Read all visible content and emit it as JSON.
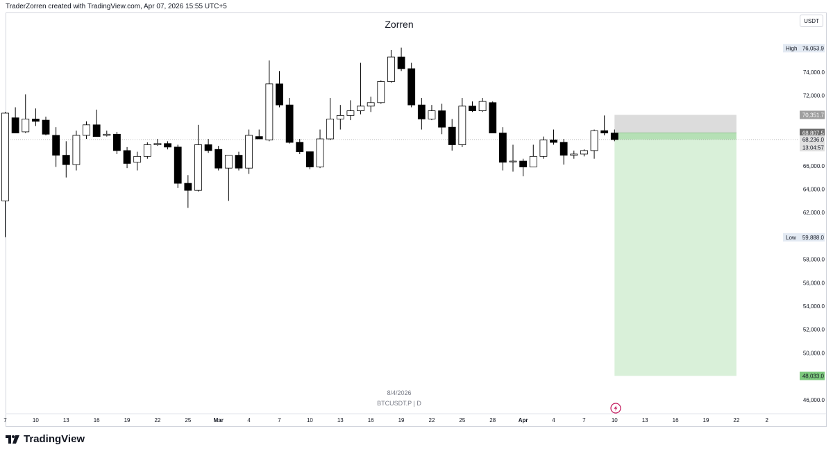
{
  "header": {
    "attribution": "TraderZorren created with TradingView.com, Apr 07, 2026 15:55 UTC+5"
  },
  "chart_title": "Zorren",
  "currency_button": "USDT",
  "watermark": {
    "date": "8/4/2026",
    "symbol": "BTCUSDT.P | D"
  },
  "footer": {
    "brand": "TradingView"
  },
  "colors": {
    "up_body": "#ffffff",
    "down_body": "#000000",
    "wick": "#000000",
    "target_zone": "#d9f0d9",
    "stop_zone": "#dcdcdc",
    "entry_zone": "#b5e0b5",
    "price_label_dark": "#6b6b6b",
    "target_label": "#7dc87d",
    "high_low_label": "#e3eaf3"
  },
  "chart_data": {
    "type": "candlestick",
    "symbol": "BTCUSDT.P",
    "interval": "D",
    "ylim": [
      45000,
      77500
    ],
    "y_ticks": [
      "74,000.0",
      "72,000.0",
      "66,000.0",
      "64,000.0",
      "62,000.0",
      "58,000.0",
      "56,000.0",
      "54,000.0",
      "52,000.0",
      "50,000.0",
      "46,000.0"
    ],
    "y_tick_values": [
      74000,
      72000,
      66000,
      64000,
      62000,
      58000,
      56000,
      54000,
      52000,
      50000,
      46000
    ],
    "x_labels": [
      "7",
      "10",
      "13",
      "16",
      "19",
      "22",
      "25",
      "Mar",
      "4",
      "7",
      "10",
      "13",
      "16",
      "19",
      "22",
      "25",
      "28",
      "Apr",
      "4",
      "7",
      "10",
      "13",
      "16",
      "19",
      "22",
      "2"
    ],
    "x_label_bar_index": [
      0,
      3,
      6,
      9,
      12,
      15,
      18,
      21,
      24,
      27,
      30,
      33,
      36,
      39,
      42,
      45,
      48,
      51,
      54,
      57,
      60,
      63,
      66,
      69,
      72,
      75
    ],
    "candles": [
      {
        "o": 63000,
        "h": 70600,
        "l": 59900,
        "c": 70500
      },
      {
        "o": 70100,
        "h": 71000,
        "l": 68800,
        "c": 68800
      },
      {
        "o": 68900,
        "h": 72100,
        "l": 68800,
        "c": 70000
      },
      {
        "o": 70000,
        "h": 70900,
        "l": 69400,
        "c": 69800
      },
      {
        "o": 69900,
        "h": 70200,
        "l": 68600,
        "c": 68700
      },
      {
        "o": 68600,
        "h": 69300,
        "l": 65900,
        "c": 66900
      },
      {
        "o": 66900,
        "h": 68100,
        "l": 65000,
        "c": 66100
      },
      {
        "o": 66100,
        "h": 69000,
        "l": 65600,
        "c": 68600
      },
      {
        "o": 68600,
        "h": 69800,
        "l": 68300,
        "c": 69500
      },
      {
        "o": 69500,
        "h": 70800,
        "l": 68500,
        "c": 68500
      },
      {
        "o": 68600,
        "h": 69000,
        "l": 68500,
        "c": 68700
      },
      {
        "o": 68700,
        "h": 68900,
        "l": 67000,
        "c": 67300
      },
      {
        "o": 67300,
        "h": 67600,
        "l": 65800,
        "c": 66200
      },
      {
        "o": 66300,
        "h": 67200,
        "l": 65600,
        "c": 66800
      },
      {
        "o": 66800,
        "h": 68000,
        "l": 66600,
        "c": 67800
      },
      {
        "o": 67800,
        "h": 68300,
        "l": 67700,
        "c": 67900
      },
      {
        "o": 67900,
        "h": 68100,
        "l": 67400,
        "c": 67600
      },
      {
        "o": 67600,
        "h": 67800,
        "l": 64100,
        "c": 64500
      },
      {
        "o": 64500,
        "h": 65200,
        "l": 62400,
        "c": 63900
      },
      {
        "o": 63900,
        "h": 69500,
        "l": 63800,
        "c": 67800
      },
      {
        "o": 67800,
        "h": 68300,
        "l": 67100,
        "c": 67300
      },
      {
        "o": 67400,
        "h": 67700,
        "l": 65600,
        "c": 65800
      },
      {
        "o": 65800,
        "h": 66800,
        "l": 63000,
        "c": 66900
      },
      {
        "o": 66900,
        "h": 67200,
        "l": 65600,
        "c": 65800
      },
      {
        "o": 65800,
        "h": 69100,
        "l": 65300,
        "c": 68600
      },
      {
        "o": 68500,
        "h": 69100,
        "l": 68300,
        "c": 68300
      },
      {
        "o": 68200,
        "h": 75000,
        "l": 68100,
        "c": 73000
      },
      {
        "o": 73000,
        "h": 74100,
        "l": 71000,
        "c": 71200
      },
      {
        "o": 71200,
        "h": 71800,
        "l": 67900,
        "c": 68000
      },
      {
        "o": 68000,
        "h": 68300,
        "l": 67000,
        "c": 67200
      },
      {
        "o": 67200,
        "h": 67200,
        "l": 65700,
        "c": 65900
      },
      {
        "o": 65900,
        "h": 69100,
        "l": 65800,
        "c": 68300
      },
      {
        "o": 68300,
        "h": 71800,
        "l": 68200,
        "c": 70000
      },
      {
        "o": 70000,
        "h": 71200,
        "l": 69100,
        "c": 70300
      },
      {
        "o": 70300,
        "h": 71600,
        "l": 69900,
        "c": 70700
      },
      {
        "o": 70700,
        "h": 74800,
        "l": 70400,
        "c": 71100
      },
      {
        "o": 71100,
        "h": 71900,
        "l": 70600,
        "c": 71400
      },
      {
        "o": 71400,
        "h": 73300,
        "l": 71300,
        "c": 73200
      },
      {
        "o": 73200,
        "h": 75900,
        "l": 73100,
        "c": 75300
      },
      {
        "o": 75300,
        "h": 76100,
        "l": 74100,
        "c": 74300
      },
      {
        "o": 74300,
        "h": 74800,
        "l": 71000,
        "c": 71200
      },
      {
        "o": 71200,
        "h": 71800,
        "l": 69100,
        "c": 70000
      },
      {
        "o": 70000,
        "h": 71200,
        "l": 69900,
        "c": 70700
      },
      {
        "o": 70700,
        "h": 71300,
        "l": 68700,
        "c": 69300
      },
      {
        "o": 69300,
        "h": 70000,
        "l": 67300,
        "c": 67800
      },
      {
        "o": 67800,
        "h": 71800,
        "l": 67600,
        "c": 71100
      },
      {
        "o": 71100,
        "h": 71500,
        "l": 70600,
        "c": 70700
      },
      {
        "o": 70700,
        "h": 71800,
        "l": 70600,
        "c": 71500
      },
      {
        "o": 71400,
        "h": 71500,
        "l": 68800,
        "c": 68800
      },
      {
        "o": 68800,
        "h": 69300,
        "l": 65600,
        "c": 66300
      },
      {
        "o": 66400,
        "h": 67800,
        "l": 65500,
        "c": 66400
      },
      {
        "o": 66400,
        "h": 66600,
        "l": 65100,
        "c": 65900
      },
      {
        "o": 65900,
        "h": 67800,
        "l": 65900,
        "c": 66800
      },
      {
        "o": 66800,
        "h": 68500,
        "l": 66600,
        "c": 68200
      },
      {
        "o": 68200,
        "h": 69100,
        "l": 67800,
        "c": 68000
      },
      {
        "o": 68000,
        "h": 68300,
        "l": 66100,
        "c": 66900
      },
      {
        "o": 66900,
        "h": 67300,
        "l": 66600,
        "c": 67000
      },
      {
        "o": 67000,
        "h": 67400,
        "l": 66800,
        "c": 67300
      },
      {
        "o": 67300,
        "h": 69100,
        "l": 66600,
        "c": 69000
      },
      {
        "o": 69000,
        "h": 70300,
        "l": 68600,
        "c": 68800
      },
      {
        "o": 68800,
        "h": 69100,
        "l": 68100,
        "c": 68236
      }
    ],
    "position_tool": {
      "start_bar": 60,
      "end_bar": 72,
      "stop": 70351.7,
      "entry": 68807.5,
      "current": 68236.0,
      "target": 48033.0
    },
    "price_labels": {
      "high": {
        "label": "High",
        "value": "76,053.9",
        "price": 76053.9
      },
      "low": {
        "label": "Low",
        "value": "59,888.0",
        "price": 59888.0
      },
      "stop": {
        "value": "70,351.7",
        "price": 70351.7
      },
      "entry": {
        "value": "68,807.5",
        "price": 68807.5
      },
      "current": {
        "value": "68,236.0",
        "price": 68236.0
      },
      "countdown": "13:04:57",
      "target": {
        "value": "48,033.0",
        "price": 48033.0
      }
    }
  }
}
